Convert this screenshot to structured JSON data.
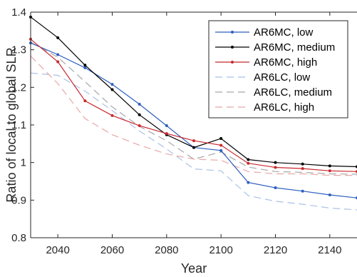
{
  "chart_data": {
    "type": "line",
    "xlabel": "Year",
    "ylabel": "Ratio of local to global SLR",
    "xlim": [
      2030,
      2150
    ],
    "ylim": [
      0.8,
      1.4
    ],
    "xticks": [
      2040,
      2060,
      2080,
      2100,
      2120,
      2140
    ],
    "yticks": [
      0.8,
      0.9,
      1,
      1.1,
      1.2,
      1.3,
      1.4
    ],
    "ytick_labels": [
      "0.8",
      "0.9",
      "1",
      "1.1",
      "1.2",
      "1.3",
      "1.4"
    ],
    "grid": false,
    "legend_position": "top-right",
    "x": [
      2030,
      2040,
      2050,
      2060,
      2070,
      2080,
      2090,
      2100,
      2110,
      2120,
      2130,
      2140,
      2150
    ],
    "series": [
      {
        "name": "AR6MC, low",
        "color": "#2e5ebf",
        "style": "solid",
        "marker": "dot",
        "values": [
          1.318,
          1.287,
          1.252,
          1.208,
          1.155,
          1.098,
          1.04,
          1.032,
          0.947,
          0.933,
          0.924,
          0.914,
          0.906
        ]
      },
      {
        "name": "AR6MC, medium",
        "color": "#000000",
        "style": "solid",
        "marker": "dot",
        "values": [
          1.387,
          1.332,
          1.259,
          1.194,
          1.127,
          1.074,
          1.04,
          1.064,
          1.008,
          1.0,
          0.996,
          0.991,
          0.989
        ]
      },
      {
        "name": "AR6MC, high",
        "color": "#c8282d",
        "style": "solid",
        "marker": "dot",
        "values": [
          1.328,
          1.268,
          1.164,
          1.125,
          1.098,
          1.077,
          1.058,
          1.046,
          0.998,
          0.987,
          0.984,
          0.978,
          0.976
        ]
      },
      {
        "name": "AR6LC, low",
        "color": "#a9c1e6",
        "style": "dashed",
        "marker": "none",
        "values": [
          1.238,
          1.232,
          1.19,
          1.138,
          1.084,
          1.036,
          0.983,
          0.978,
          0.912,
          0.897,
          0.889,
          0.879,
          0.874
        ]
      },
      {
        "name": "AR6LC, medium",
        "color": "#a6a6a6",
        "style": "dashed",
        "marker": "none",
        "values": [
          1.32,
          1.28,
          1.215,
          1.148,
          1.096,
          1.058,
          1.009,
          1.028,
          0.988,
          0.976,
          0.974,
          0.97,
          0.969
        ]
      },
      {
        "name": "AR6LC, high",
        "color": "#e8a7a7",
        "style": "dashed",
        "marker": "none",
        "values": [
          1.283,
          1.21,
          1.117,
          1.074,
          1.046,
          1.023,
          1.009,
          1.006,
          0.976,
          0.97,
          0.97,
          0.966,
          0.966
        ]
      }
    ]
  }
}
